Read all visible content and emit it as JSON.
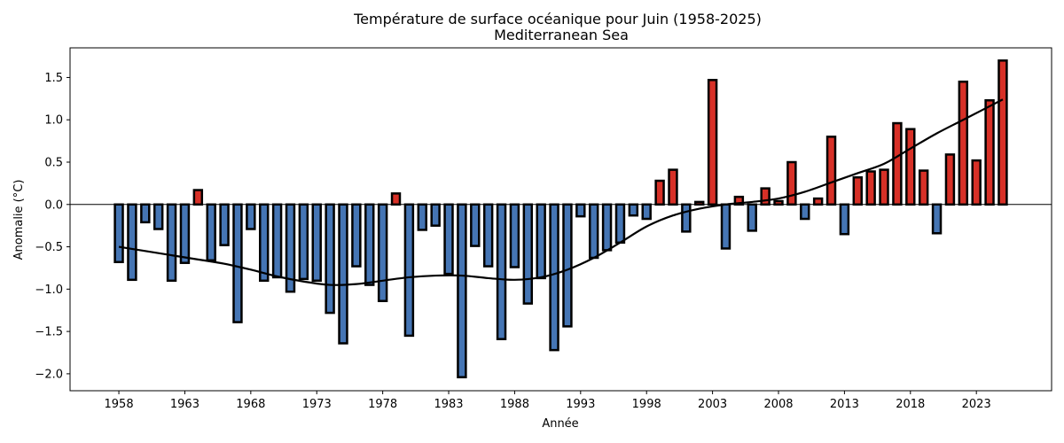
{
  "chart_data": {
    "type": "bar",
    "title": "Température de surface océanique pour Juin (1958-2025)",
    "subtitle": "Mediterranean Sea",
    "xlabel": "Année",
    "ylabel": "Anomalie (°C)",
    "ylim": [
      -2.2,
      1.85
    ],
    "xlim": [
      1954.3,
      2028.7
    ],
    "xticks": [
      1958,
      1963,
      1968,
      1973,
      1978,
      1983,
      1988,
      1993,
      1998,
      2003,
      2008,
      2013,
      2018,
      2023
    ],
    "yticks": [
      -2.0,
      -1.5,
      -1.0,
      -0.5,
      0.0,
      0.5,
      1.0,
      1.5
    ],
    "ytick_labels": [
      "−2.0",
      "−1.5",
      "−1.0",
      "−0.5",
      "0.0",
      "0.5",
      "1.0",
      "1.5"
    ],
    "colors": {
      "positive": "#d73027",
      "negative": "#4575b4",
      "trend": "#000000",
      "edge": "#000000"
    },
    "grid": false,
    "series": [
      {
        "type": "bar",
        "x": [
          1958,
          1959,
          1960,
          1961,
          1962,
          1963,
          1964,
          1965,
          1966,
          1967,
          1968,
          1969,
          1970,
          1971,
          1972,
          1973,
          1974,
          1975,
          1976,
          1977,
          1978,
          1979,
          1980,
          1981,
          1982,
          1983,
          1984,
          1985,
          1986,
          1987,
          1988,
          1989,
          1990,
          1991,
          1992,
          1993,
          1994,
          1995,
          1996,
          1997,
          1998,
          1999,
          2000,
          2001,
          2002,
          2003,
          2004,
          2005,
          2006,
          2007,
          2008,
          2009,
          2010,
          2011,
          2012,
          2013,
          2014,
          2015,
          2016,
          2017,
          2018,
          2019,
          2020,
          2021,
          2022,
          2023,
          2024,
          2025
        ],
        "values": [
          -0.68,
          -0.89,
          -0.21,
          -0.29,
          -0.9,
          -0.69,
          0.17,
          -0.66,
          -0.48,
          -1.39,
          -0.29,
          -0.9,
          -0.86,
          -1.03,
          -0.88,
          -0.9,
          -1.28,
          -1.64,
          -0.73,
          -0.95,
          -1.14,
          0.13,
          -1.55,
          -0.3,
          -0.25,
          -0.82,
          -2.04,
          -0.49,
          -0.73,
          -1.59,
          -0.74,
          -1.17,
          -0.87,
          -1.72,
          -1.44,
          -0.14,
          -0.63,
          -0.54,
          -0.45,
          -0.13,
          -0.17,
          0.28,
          0.41,
          -0.32,
          0.03,
          1.47,
          -0.52,
          0.09,
          -0.31,
          0.19,
          0.04,
          0.5,
          -0.17,
          0.07,
          0.8,
          -0.35,
          0.32,
          0.39,
          0.41,
          0.96,
          0.89,
          0.4,
          -0.34,
          0.59,
          1.45,
          0.52,
          1.23,
          1.7
        ]
      },
      {
        "type": "line",
        "x": [
          1958,
          1960,
          1962,
          1964,
          1966,
          1968,
          1970,
          1972,
          1974,
          1976,
          1978,
          1980,
          1982,
          1984,
          1986,
          1988,
          1990,
          1992,
          1994,
          1996,
          1998,
          2000,
          2002,
          2004,
          2006,
          2008,
          2010,
          2012,
          2014,
          2016,
          2018,
          2020,
          2022,
          2025
        ],
        "values": [
          -0.5,
          -0.55,
          -0.6,
          -0.65,
          -0.7,
          -0.77,
          -0.85,
          -0.91,
          -0.95,
          -0.94,
          -0.9,
          -0.86,
          -0.84,
          -0.84,
          -0.87,
          -0.89,
          -0.86,
          -0.77,
          -0.63,
          -0.45,
          -0.26,
          -0.13,
          -0.05,
          0.0,
          0.03,
          0.07,
          0.15,
          0.26,
          0.37,
          0.48,
          0.66,
          0.84,
          1.0,
          1.24
        ]
      }
    ]
  }
}
